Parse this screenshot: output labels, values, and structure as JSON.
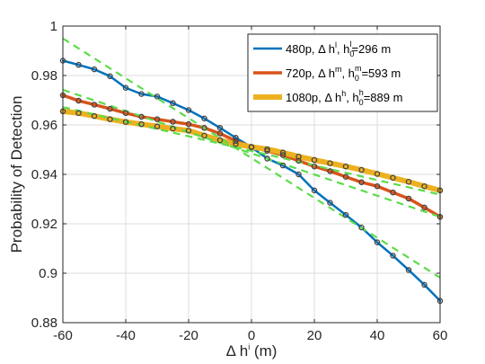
{
  "chart_data": {
    "type": "line",
    "xlabel_parts": [
      "Δ h",
      "i",
      " (m)"
    ],
    "ylabel": "Probability of Detection",
    "xlim": [
      -60,
      60
    ],
    "ylim": [
      0.88,
      1.0
    ],
    "x_ticks": [
      -60,
      -40,
      -20,
      0,
      20,
      40,
      60
    ],
    "x_tick_labels": [
      "-60",
      "-40",
      "-20",
      "0",
      "20",
      "40",
      "60"
    ],
    "y_ticks": [
      0.88,
      0.9,
      0.92,
      0.94,
      0.96,
      0.98,
      1.0
    ],
    "y_tick_labels": [
      "0.88",
      "0.9",
      "0.92",
      "0.94",
      "0.96",
      "0.98",
      "1"
    ],
    "grid": true,
    "legend_position": "top-right",
    "marker_style": "hollow dark circles on each series",
    "series": [
      {
        "legend_parts": [
          "480p, Δ h",
          "l",
          ", h",
          "0",
          "l",
          "=296 m"
        ],
        "color": "#0072BD",
        "line_width": 2.5,
        "x": [
          -60,
          -55,
          -50,
          -45,
          -40,
          -35,
          -30,
          -25,
          -20,
          -15,
          -10,
          -5,
          0,
          5,
          10,
          15,
          20,
          25,
          30,
          35,
          40,
          45,
          50,
          55,
          60
        ],
        "values": [
          0.986,
          0.9843,
          0.9825,
          0.9797,
          0.975,
          0.9725,
          0.9715,
          0.9688,
          0.966,
          0.9626,
          0.9588,
          0.9548,
          0.951,
          0.9464,
          0.9436,
          0.94,
          0.9335,
          0.9285,
          0.9236,
          0.9185,
          0.9125,
          0.9071,
          0.9013,
          0.8953,
          0.8888
        ]
      },
      {
        "legend_parts": [
          "720p, Δ h",
          "m",
          ", h",
          "0",
          "m",
          "=593 m"
        ],
        "color": "#D95319",
        "line_width": 3.5,
        "x": [
          -60,
          -55,
          -50,
          -45,
          -40,
          -35,
          -30,
          -25,
          -20,
          -15,
          -10,
          -5,
          0,
          5,
          10,
          15,
          20,
          25,
          30,
          35,
          40,
          45,
          50,
          55,
          60
        ],
        "values": [
          0.972,
          0.9698,
          0.9682,
          0.9665,
          0.9648,
          0.9633,
          0.9623,
          0.9613,
          0.9603,
          0.9588,
          0.9565,
          0.9535,
          0.9511,
          0.9495,
          0.9478,
          0.9455,
          0.9432,
          0.9413,
          0.939,
          0.9368,
          0.9352,
          0.9327,
          0.9302,
          0.9266,
          0.9228
        ]
      },
      {
        "legend_parts": [
          "1080p, Δ h",
          "h",
          ", h",
          "0",
          "h",
          "=889 m"
        ],
        "color": "#EDB120",
        "line_width": 6,
        "x": [
          -60,
          -55,
          -50,
          -45,
          -40,
          -35,
          -30,
          -25,
          -20,
          -15,
          -10,
          -5,
          0,
          5,
          10,
          15,
          20,
          25,
          30,
          35,
          40,
          45,
          50,
          55,
          60
        ],
        "values": [
          0.9655,
          0.9648,
          0.9636,
          0.9623,
          0.9612,
          0.9603,
          0.9594,
          0.9585,
          0.9577,
          0.9557,
          0.9538,
          0.9523,
          0.9511,
          0.9502,
          0.9488,
          0.9472,
          0.9458,
          0.9445,
          0.9432,
          0.9418,
          0.9402,
          0.9386,
          0.937,
          0.9352,
          0.9335
        ]
      }
    ],
    "reference_lines": [
      {
        "x": [
          -60,
          60
        ],
        "values": [
          0.995,
          0.8982
        ]
      },
      {
        "x": [
          -60,
          60
        ],
        "values": [
          0.9742,
          0.9228
        ]
      },
      {
        "x": [
          -60,
          60
        ],
        "values": [
          0.9672,
          0.9318
        ]
      }
    ],
    "reference_color": "#5BDC48"
  }
}
